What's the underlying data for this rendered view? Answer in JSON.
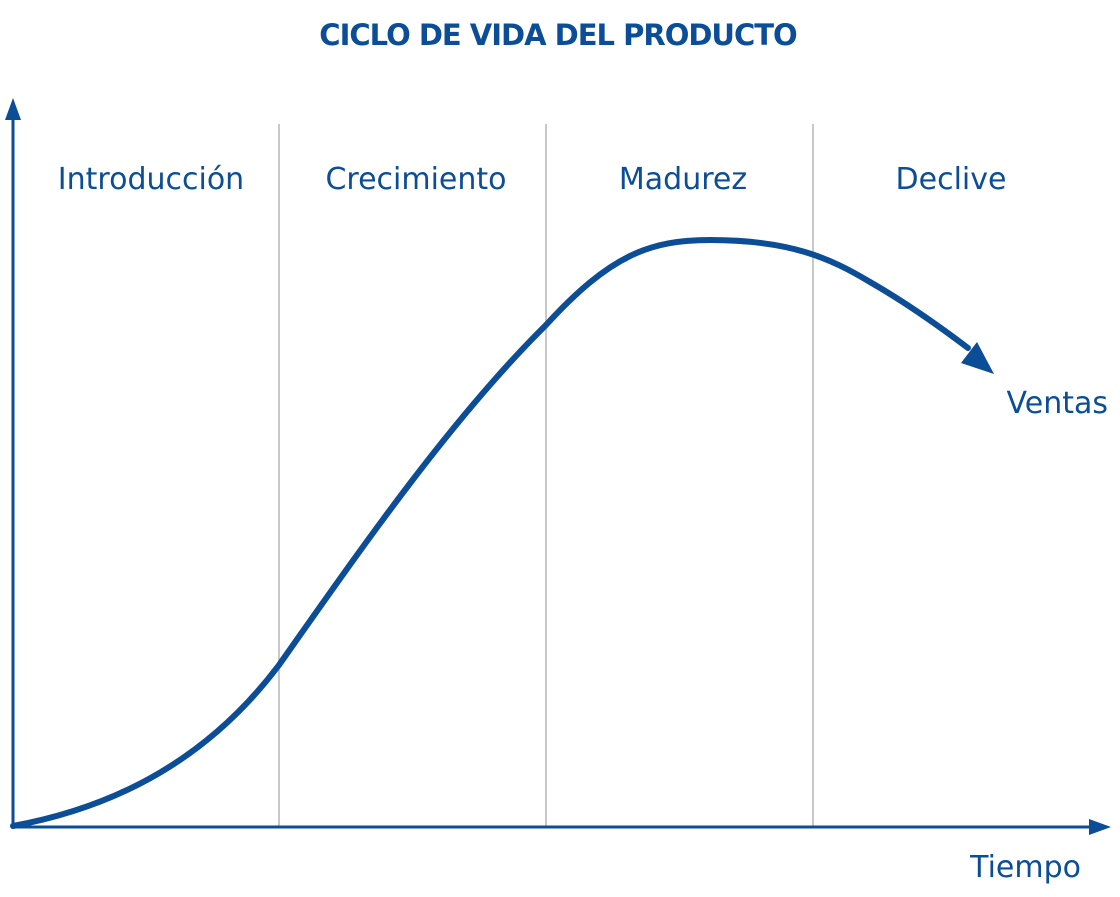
{
  "title": "CICLO DE VIDA DEL PRODUCTO",
  "stages": [
    {
      "label": "Introducción"
    },
    {
      "label": "Crecimiento"
    },
    {
      "label": "Madurez"
    },
    {
      "label": "Declive"
    }
  ],
  "x_axis_label": "Tiempo",
  "curve_label": "Ventas",
  "colors": {
    "primary": "#0b4d96",
    "divider": "#b5b5b5"
  }
}
